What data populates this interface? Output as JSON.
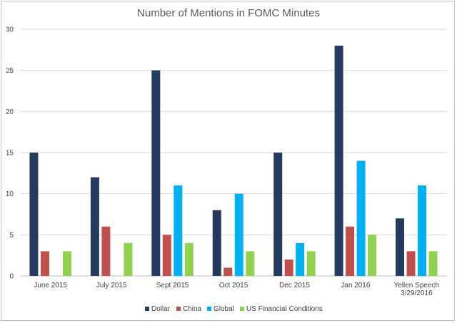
{
  "chart_data": {
    "type": "bar",
    "title": "Number of Mentions in FOMC Minutes",
    "xlabel": "",
    "ylabel": "",
    "ylim": [
      0,
      30
    ],
    "yticks": [
      0,
      5,
      10,
      15,
      20,
      25,
      30
    ],
    "grid": true,
    "legend_position": "bottom",
    "categories": [
      "June 2015",
      "July 2015",
      "Sept 2015",
      "Oct 2015",
      "Dec 2015",
      "Jan 2016",
      "Yellen Speech 3/29/2016"
    ],
    "category_lines": [
      [
        "June 2015"
      ],
      [
        "July 2015"
      ],
      [
        "Sept 2015"
      ],
      [
        "Oct 2015"
      ],
      [
        "Dec 2015"
      ],
      [
        "Jan 2016"
      ],
      [
        "Yellen Speech",
        "3/29/2016"
      ]
    ],
    "series": [
      {
        "name": "Dollar",
        "color": "#243a5e",
        "values": [
          15,
          12,
          25,
          8,
          15,
          28,
          7
        ]
      },
      {
        "name": "China",
        "color": "#c0504d",
        "values": [
          3,
          6,
          5,
          1,
          2,
          6,
          3
        ]
      },
      {
        "name": "Global",
        "color": "#00b0f0",
        "values": [
          null,
          null,
          11,
          10,
          4,
          14,
          11
        ]
      },
      {
        "name": "US Financial Conditions",
        "color": "#92d050",
        "values": [
          3,
          4,
          4,
          3,
          3,
          5,
          3
        ]
      }
    ]
  }
}
